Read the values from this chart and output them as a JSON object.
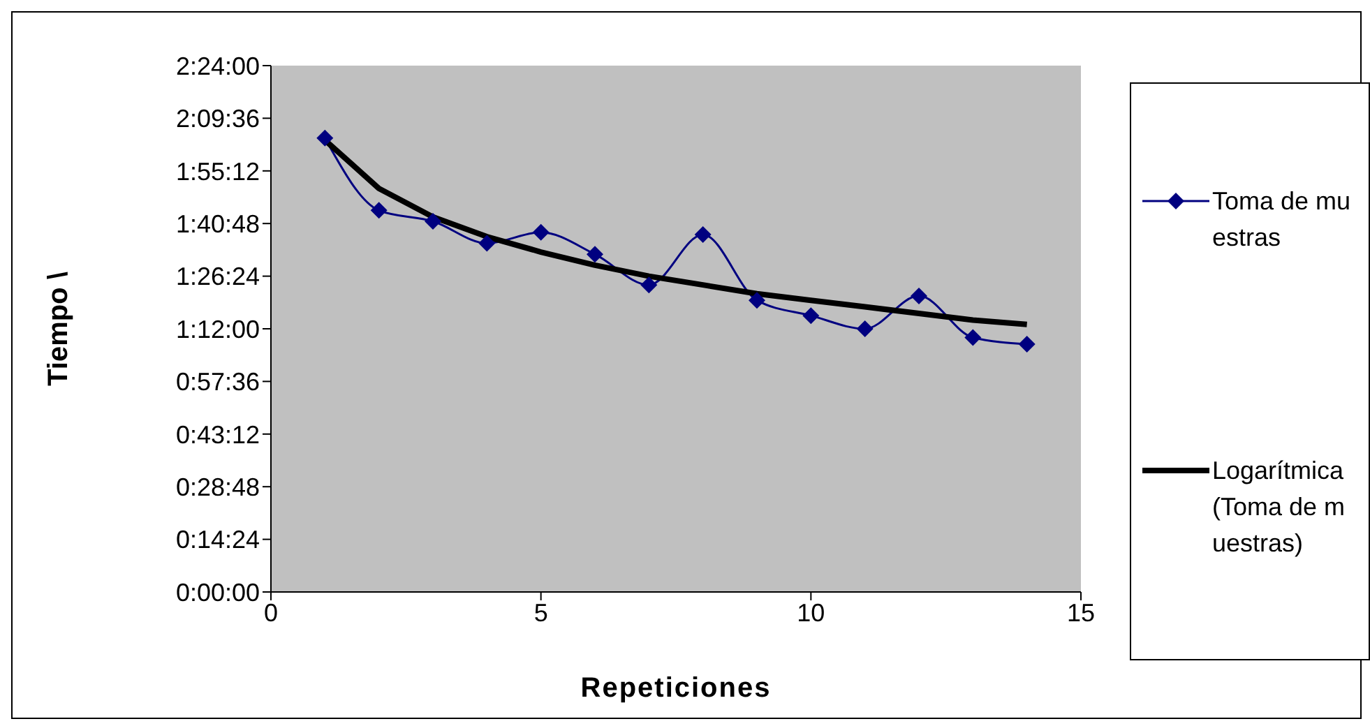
{
  "chart_data": {
    "type": "line",
    "xlabel": "Repeticiones",
    "ylabel": "Tiempo \\",
    "xlim": [
      0,
      15
    ],
    "xticks": [
      0,
      5,
      10,
      15
    ],
    "ylim": [
      0,
      2.4
    ],
    "yticks": [
      {
        "value": 0,
        "label": "0:00:00"
      },
      {
        "value": 0.24,
        "label": "0:14:24"
      },
      {
        "value": 0.48,
        "label": "0:28:48"
      },
      {
        "value": 0.72,
        "label": "0:43:12"
      },
      {
        "value": 0.96,
        "label": "0:57:36"
      },
      {
        "value": 1.2,
        "label": "1:12:00"
      },
      {
        "value": 1.44,
        "label": "1:26:24"
      },
      {
        "value": 1.68,
        "label": "1:40:48"
      },
      {
        "value": 1.92,
        "label": "1:55:12"
      },
      {
        "value": 2.16,
        "label": "2:09:36"
      },
      {
        "value": 2.4,
        "label": "2:24:00"
      }
    ],
    "grid": false,
    "legend": "right",
    "series": [
      {
        "name": "Toma de muestras",
        "color": "#000080",
        "marker": "diamond",
        "x": [
          1,
          2,
          3,
          4,
          5,
          6,
          7,
          8,
          9,
          10,
          11,
          12,
          13,
          14
        ],
        "values": [
          2.07,
          1.74,
          1.69,
          1.59,
          1.64,
          1.54,
          1.4,
          1.63,
          1.33,
          1.26,
          1.2,
          1.35,
          1.16,
          1.13
        ]
      },
      {
        "name": "Logarítmica (Toma de muestras)",
        "color": "#000000",
        "marker": "none",
        "x": [
          1,
          2,
          3,
          4,
          5,
          6,
          7,
          8,
          9,
          10,
          11,
          12,
          13,
          14
        ],
        "values": [
          2.06,
          1.84,
          1.71,
          1.62,
          1.55,
          1.49,
          1.44,
          1.4,
          1.36,
          1.33,
          1.3,
          1.27,
          1.24,
          1.22
        ]
      }
    ]
  }
}
